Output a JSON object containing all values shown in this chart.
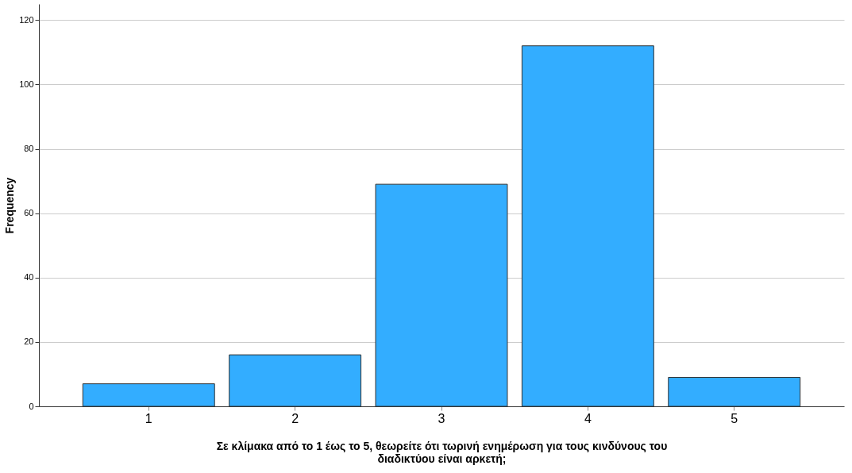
{
  "chart_data": {
    "type": "bar",
    "categories": [
      "1",
      "2",
      "3",
      "4",
      "5"
    ],
    "values": [
      7,
      16,
      69,
      112,
      9
    ],
    "color": "#33adff",
    "xlabel": "Σε κλίμακα από το 1 έως το 5, θεωρείτε ότι τωρινή ενημέρωση για τους κινδύνους του διαδικτύου είναι αρκετή;",
    "ylabel": "Frequency",
    "ylim": [
      0,
      125
    ],
    "yticks": [
      0,
      20,
      40,
      60,
      80,
      100,
      120
    ],
    "grid": "y"
  }
}
